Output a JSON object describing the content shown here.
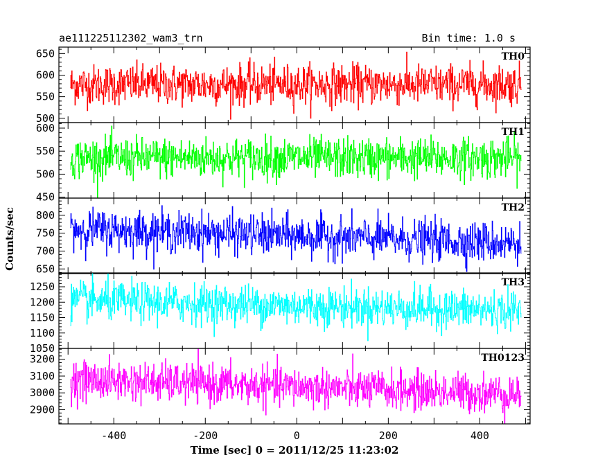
{
  "header": {
    "title": "ae111225112302_wam3_trn",
    "bin_time": "Bin time: 1.0 s"
  },
  "chart_data": {
    "type": "line",
    "xlabel": "Time [sec] 0 = 2011/12/25 11:23:02",
    "ylabel": "Counts/sec",
    "xlim": [
      -520,
      510
    ],
    "x_ticks": [
      -400,
      -200,
      0,
      200,
      400
    ],
    "x_range": [
      -495,
      490
    ],
    "x_step": 1,
    "grid": false,
    "panels": [
      {
        "name": "TH0",
        "color": "#ff0000",
        "ylim": [
          490,
          665
        ],
        "y_ticks": [
          500,
          550,
          600,
          650
        ],
        "mean": 578,
        "noise_sd": 23,
        "values_summary": "noisy light curve centered near 578 counts/sec, range about 495-665"
      },
      {
        "name": "TH1",
        "color": "#00ff00",
        "ylim": [
          448,
          612
        ],
        "y_ticks": [
          450,
          500,
          550,
          600
        ],
        "mean": 535,
        "noise_sd": 22,
        "values_summary": "noisy light curve centered near 535 counts/sec, range about 455-605"
      },
      {
        "name": "TH2",
        "color": "#0000ff",
        "ylim": [
          637,
          848
        ],
        "y_ticks": [
          650,
          700,
          750,
          800
        ],
        "mean_start": 762,
        "mean_end": 722,
        "noise_sd": 28,
        "values_summary": "noisy light curve slowly declining from about 762 to 722 counts/sec"
      },
      {
        "name": "TH3",
        "color": "#00ffff",
        "ylim": [
          1050,
          1295
        ],
        "y_ticks": [
          1050,
          1100,
          1150,
          1200,
          1250
        ],
        "mean_start": 1205,
        "mean_end": 1172,
        "noise_sd": 32,
        "values_summary": "noisy light curve slowly declining from about 1205 to 1172 counts/sec"
      },
      {
        "name": "TH0123",
        "color": "#ff00ff",
        "ylim": [
          2815,
          3265
        ],
        "y_ticks": [
          2900,
          3000,
          3100,
          3200
        ],
        "mean_start": 3078,
        "mean_end": 2992,
        "noise_sd": 58,
        "values_summary": "noisy light curve slowly declining from about 3078 to 2992 counts/sec"
      }
    ]
  }
}
